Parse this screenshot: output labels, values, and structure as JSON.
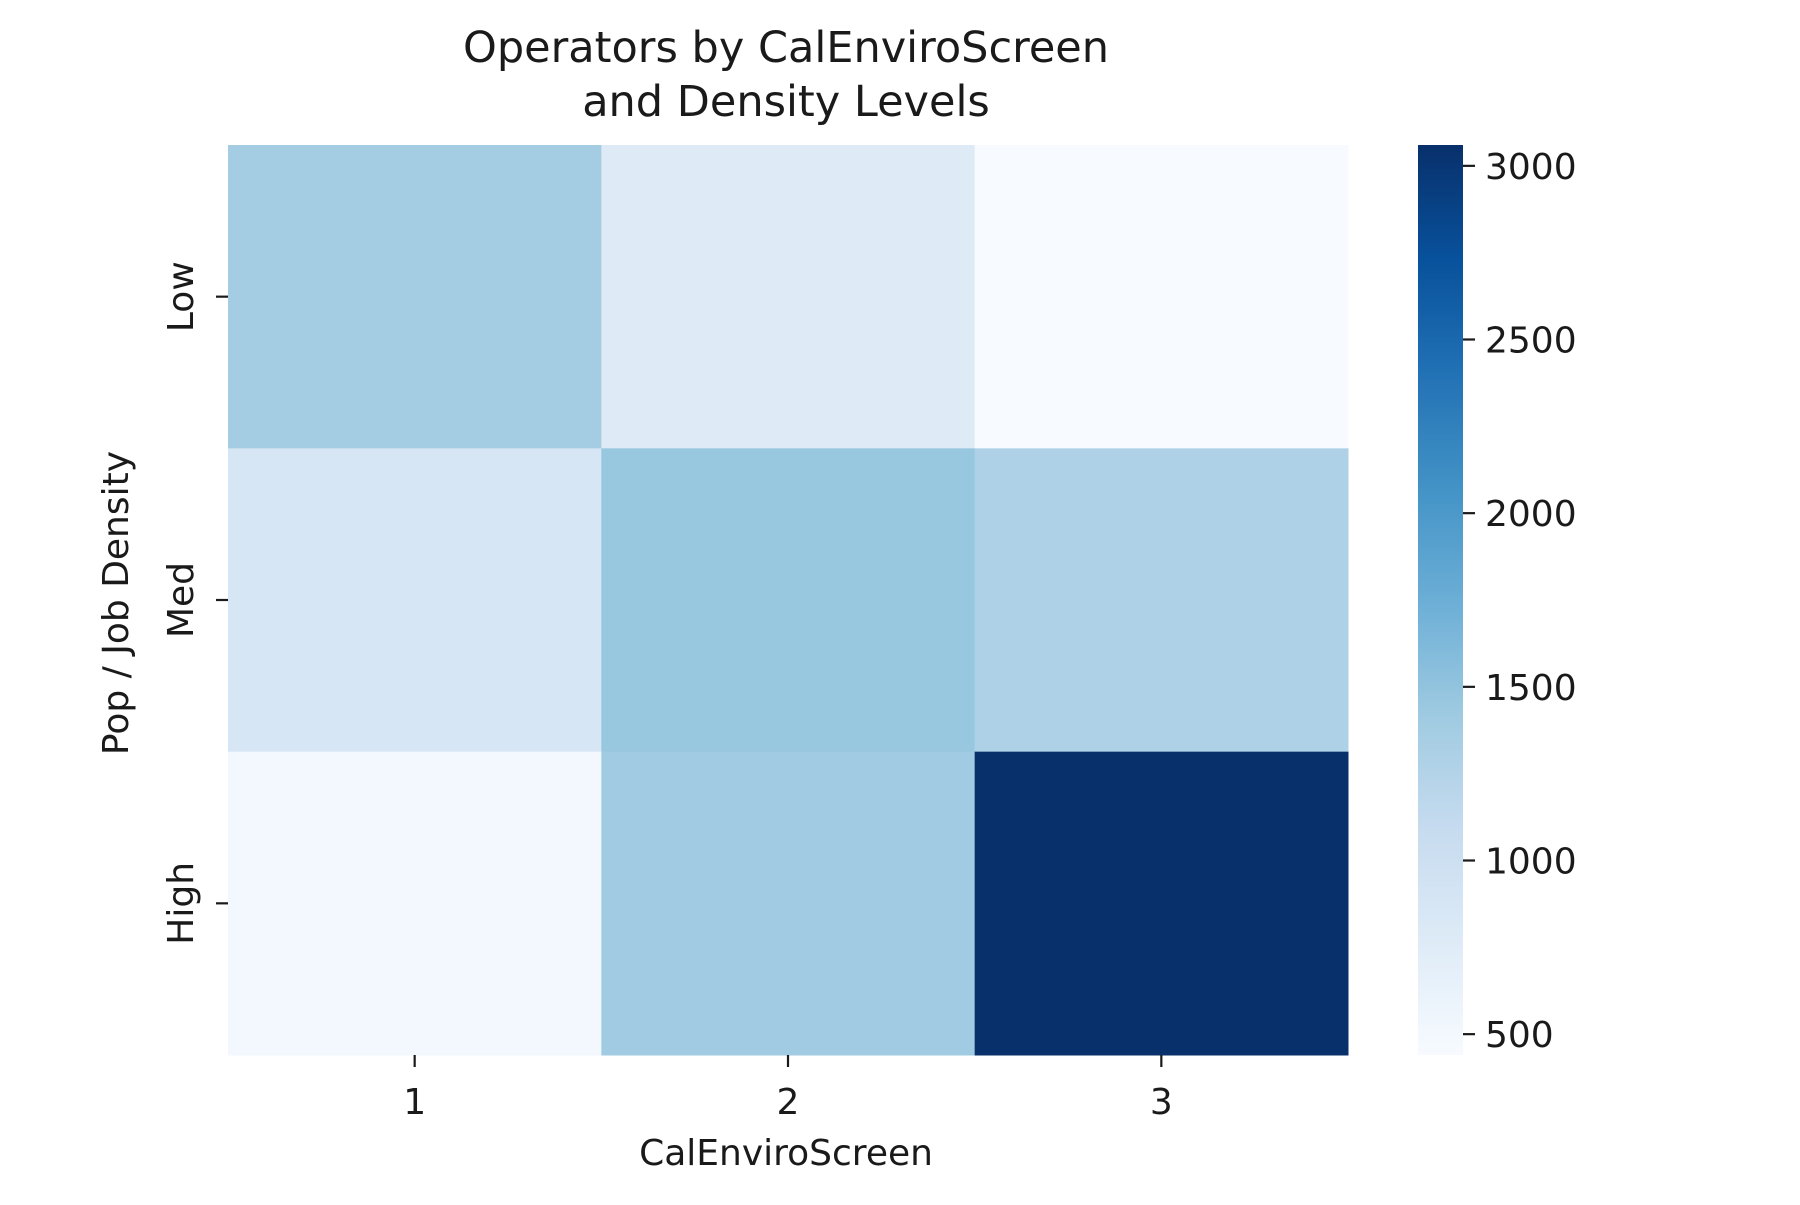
{
  "chart_data": {
    "type": "heatmap",
    "title": "Operators by CalEnviroScreen and Density Levels",
    "title_lines": [
      "Operators by CalEnviroScreen",
      "and Density Levels"
    ],
    "xlabel": "CalEnviroScreen",
    "ylabel": "Pop / Job Density",
    "x_categories": [
      "1",
      "2",
      "3"
    ],
    "y_categories": [
      "Low",
      "Med",
      "High"
    ],
    "values": [
      [
        1370,
        770,
        440
      ],
      [
        880,
        1460,
        1280
      ],
      [
        510,
        1400,
        3060
      ]
    ],
    "colorbar": {
      "min": 440,
      "max": 3060,
      "ticks": [
        500,
        1000,
        1500,
        2000,
        2500,
        3000
      ],
      "tick_labels": [
        "500",
        "1000",
        "1500",
        "2000",
        "2500",
        "3000"
      ],
      "colormap": "Blues",
      "stops": [
        "#f7fbff",
        "#deebf7",
        "#c6dbef",
        "#9ecae1",
        "#6baed6",
        "#4292c6",
        "#2171b5",
        "#08519c",
        "#08306b"
      ]
    }
  }
}
